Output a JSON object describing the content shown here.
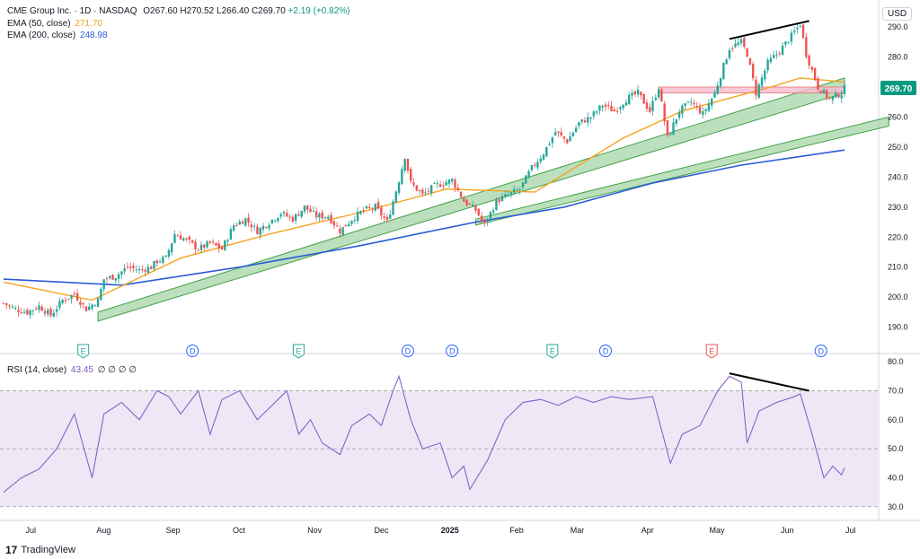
{
  "header": {
    "symbol": "CME Group Inc. · 1D · NASDAQ",
    "open": "O267.60",
    "high": "H270.52",
    "low": "L266.40",
    "close": "C269.70",
    "change": "+2.19 (+0.82%)",
    "ema50_label": "EMA (50, close)",
    "ema50_value": "271.70",
    "ema200_label": "EMA (200, close)",
    "ema200_value": "248.98",
    "currency": "USD",
    "last_price": "269.70"
  },
  "rsi_legend": {
    "label": "RSI (14, close)",
    "value": "43.45",
    "extra": "∅ ∅ ∅ ∅"
  },
  "branding": {
    "name": "TradingView",
    "logo_text": "17"
  },
  "colors": {
    "up": "#26a69a",
    "down": "#ef5350",
    "ema50": "#f7a21b",
    "ema200": "#2a5bd7",
    "rsi": "#7e57c2",
    "rsi_band": "#ede7f6",
    "channel_fill": "#a5d6a7",
    "channel_edge": "#43a047",
    "price_label": "#089981",
    "resist_zone": "#f8bbd0"
  },
  "chart_data": [
    {
      "type": "candlestick",
      "title": "CME Group Inc. · 1D · NASDAQ",
      "y_axis_ticks": [
        190,
        200,
        210,
        220,
        230,
        240,
        250,
        260,
        270,
        280,
        290
      ],
      "ylim": [
        186,
        296
      ],
      "x_axis_labels": [
        "Jul",
        "Aug",
        "Sep",
        "Oct",
        "Nov",
        "Dec",
        "2025",
        "Feb",
        "Mar",
        "Apr",
        "May",
        "Jun",
        "Jul"
      ],
      "close_path": [
        [
          0,
          198
        ],
        [
          4,
          196
        ],
        [
          8,
          195
        ],
        [
          12,
          197
        ],
        [
          16,
          194
        ],
        [
          20,
          199
        ],
        [
          24,
          201
        ],
        [
          28,
          196
        ],
        [
          32,
          199
        ],
        [
          34,
          206
        ],
        [
          38,
          207
        ],
        [
          42,
          210
        ],
        [
          46,
          209
        ],
        [
          50,
          210
        ],
        [
          52,
          212
        ],
        [
          55,
          213
        ],
        [
          58,
          221
        ],
        [
          62,
          219
        ],
        [
          66,
          216
        ],
        [
          70,
          218
        ],
        [
          74,
          216
        ],
        [
          78,
          224
        ],
        [
          82,
          226
        ],
        [
          86,
          222
        ],
        [
          90,
          225
        ],
        [
          94,
          228
        ],
        [
          98,
          226
        ],
        [
          102,
          230
        ],
        [
          106,
          227
        ],
        [
          110,
          227
        ],
        [
          114,
          222
        ],
        [
          118,
          226
        ],
        [
          122,
          229
        ],
        [
          126,
          230
        ],
        [
          130,
          225
        ],
        [
          134,
          239
        ],
        [
          136,
          247
        ],
        [
          138,
          238
        ],
        [
          142,
          234
        ],
        [
          146,
          237
        ],
        [
          152,
          239
        ],
        [
          156,
          232
        ],
        [
          160,
          229
        ],
        [
          163,
          224
        ],
        [
          167,
          232
        ],
        [
          171,
          234
        ],
        [
          175,
          236
        ],
        [
          179,
          243
        ],
        [
          183,
          248
        ],
        [
          187,
          255
        ],
        [
          191,
          252
        ],
        [
          195,
          258
        ],
        [
          199,
          260
        ],
        [
          203,
          264
        ],
        [
          207,
          262
        ],
        [
          211,
          266
        ],
        [
          215,
          268
        ],
        [
          219,
          262
        ],
        [
          222,
          270
        ],
        [
          225,
          253
        ],
        [
          229,
          262
        ],
        [
          233,
          265
        ],
        [
          237,
          261
        ],
        [
          241,
          268
        ],
        [
          246,
          283
        ],
        [
          250,
          285
        ],
        [
          252,
          281
        ],
        [
          255,
          268
        ],
        [
          259,
          278
        ],
        [
          263,
          282
        ],
        [
          267,
          287
        ],
        [
          270,
          291
        ],
        [
          272,
          281
        ],
        [
          276,
          270
        ],
        [
          280,
          266
        ],
        [
          284,
          268
        ],
        [
          285,
          269.7
        ]
      ],
      "ema50": [
        [
          0,
          205
        ],
        [
          30,
          199
        ],
        [
          60,
          213
        ],
        [
          90,
          221
        ],
        [
          120,
          228
        ],
        [
          150,
          236
        ],
        [
          180,
          235
        ],
        [
          210,
          253
        ],
        [
          230,
          262
        ],
        [
          260,
          270
        ],
        [
          270,
          273
        ],
        [
          285,
          271.7
        ]
      ],
      "ema200": [
        [
          0,
          206
        ],
        [
          40,
          204
        ],
        [
          80,
          210
        ],
        [
          120,
          217
        ],
        [
          160,
          225
        ],
        [
          190,
          230
        ],
        [
          220,
          238
        ],
        [
          250,
          244
        ],
        [
          285,
          249
        ]
      ],
      "trend_channels": [
        {
          "name": "lower channel",
          "x": [
            32,
            285
          ],
          "upper": [
            195,
            273
          ],
          "lower": [
            192,
            268
          ]
        },
        {
          "name": "upper channel",
          "x": [
            160,
            300
          ],
          "upper": [
            226,
            260
          ],
          "lower": [
            224,
            257
          ]
        }
      ],
      "price_trendline": {
        "x": [
          246,
          273
        ],
        "y": [
          286,
          292
        ]
      },
      "resistance_zone": {
        "x": [
          222,
          285
        ],
        "y": [
          268,
          270
        ]
      },
      "event_markers": [
        {
          "x": 27,
          "label": "E"
        },
        {
          "x": 64,
          "label": "D"
        },
        {
          "x": 100,
          "label": "E"
        },
        {
          "x": 137,
          "label": "D"
        },
        {
          "x": 152,
          "label": "D"
        },
        {
          "x": 186,
          "label": "E"
        },
        {
          "x": 204,
          "label": "D"
        },
        {
          "x": 240,
          "label": "E"
        },
        {
          "x": 277,
          "label": "D"
        }
      ]
    },
    {
      "type": "line",
      "title": "RSI (14, close)",
      "y_axis_ticks": [
        30,
        40,
        50,
        60,
        70,
        80
      ],
      "ylim": [
        29,
        81
      ],
      "bands": [
        30,
        50,
        70
      ],
      "series": [
        {
          "name": "RSI (14, close)",
          "values": [
            [
              0,
              35
            ],
            [
              6,
              40
            ],
            [
              12,
              43
            ],
            [
              18,
              50
            ],
            [
              24,
              62
            ],
            [
              30,
              40
            ],
            [
              34,
              62
            ],
            [
              40,
              66
            ],
            [
              46,
              60
            ],
            [
              52,
              70
            ],
            [
              56,
              68
            ],
            [
              60,
              62
            ],
            [
              66,
              70
            ],
            [
              70,
              55
            ],
            [
              74,
              67
            ],
            [
              80,
              70
            ],
            [
              86,
              60
            ],
            [
              92,
              66
            ],
            [
              96,
              70
            ],
            [
              100,
              55
            ],
            [
              104,
              60
            ],
            [
              108,
              52
            ],
            [
              114,
              48
            ],
            [
              118,
              58
            ],
            [
              124,
              62
            ],
            [
              128,
              58
            ],
            [
              132,
              70
            ],
            [
              134,
              75
            ],
            [
              138,
              60
            ],
            [
              142,
              50
            ],
            [
              148,
              52
            ],
            [
              152,
              40
            ],
            [
              156,
              44
            ],
            [
              158,
              36
            ],
            [
              164,
              46
            ],
            [
              170,
              60
            ],
            [
              176,
              66
            ],
            [
              182,
              67
            ],
            [
              188,
              65
            ],
            [
              194,
              68
            ],
            [
              200,
              66
            ],
            [
              206,
              68
            ],
            [
              212,
              67
            ],
            [
              220,
              68
            ],
            [
              226,
              45
            ],
            [
              230,
              55
            ],
            [
              236,
              58
            ],
            [
              242,
              70
            ],
            [
              246,
              75
            ],
            [
              250,
              73
            ],
            [
              252,
              52
            ],
            [
              256,
              63
            ],
            [
              262,
              66
            ],
            [
              268,
              68
            ],
            [
              270,
              69
            ],
            [
              274,
              55
            ],
            [
              278,
              40
            ],
            [
              281,
              44
            ],
            [
              284,
              41
            ],
            [
              285,
              43.45
            ]
          ]
        }
      ],
      "divergence_line": {
        "x": [
          246,
          273
        ],
        "y": [
          76,
          70
        ]
      }
    }
  ]
}
